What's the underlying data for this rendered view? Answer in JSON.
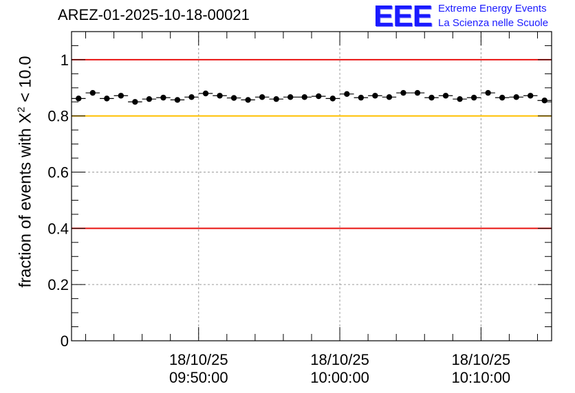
{
  "header": {
    "title": "AREZ-01-2025-10-18-00021"
  },
  "logo": {
    "mark": "EEE",
    "line1": "Extreme Energy Events",
    "line2": "La Scienza nelle Scuole",
    "color": "#1a1aff"
  },
  "chart_data": {
    "type": "scatter",
    "title": "AREZ-01-2025-10-18-00021",
    "xlabel": "",
    "ylabel_prefix": "fraction of events with ",
    "ylabel_symbol": "X",
    "ylabel_exponent": "2",
    "ylabel_suffix": " < 10.0",
    "ylim": [
      0,
      1.1
    ],
    "xlim_minutes": [
      0,
      34
    ],
    "grid": true,
    "x_ticks": [
      {
        "minute": 9,
        "date": "18/10/25",
        "time": "09:50:00"
      },
      {
        "minute": 19,
        "date": "18/10/25",
        "time": "10:00:00"
      },
      {
        "minute": 29,
        "date": "18/10/25",
        "time": "10:10:00"
      }
    ],
    "y_ticks": [
      {
        "value": 0,
        "label": "0"
      },
      {
        "value": 0.2,
        "label": "0.2"
      },
      {
        "value": 0.4,
        "label": "0.4"
      },
      {
        "value": 0.6,
        "label": "0.6"
      },
      {
        "value": 0.8,
        "label": "0.8"
      },
      {
        "value": 1,
        "label": "1"
      }
    ],
    "reference_lines": [
      {
        "value": 1.0,
        "color": "#e8110f"
      },
      {
        "value": 0.8,
        "color": "#ffc000"
      },
      {
        "value": 0.4,
        "color": "#e8110f"
      }
    ],
    "series": [
      {
        "name": "fraction",
        "x": [
          0.5,
          1.5,
          2.5,
          3.5,
          4.5,
          5.5,
          6.5,
          7.5,
          8.5,
          9.5,
          10.5,
          11.5,
          12.5,
          13.5,
          14.5,
          15.5,
          16.5,
          17.5,
          18.5,
          19.5,
          20.5,
          21.5,
          22.5,
          23.5,
          24.5,
          25.5,
          26.5,
          27.5,
          28.5,
          29.5,
          30.5,
          31.5,
          32.5,
          33.5
        ],
        "values": [
          0.862,
          0.882,
          0.862,
          0.872,
          0.85,
          0.86,
          0.865,
          0.857,
          0.867,
          0.88,
          0.872,
          0.864,
          0.857,
          0.867,
          0.86,
          0.867,
          0.867,
          0.87,
          0.862,
          0.878,
          0.865,
          0.872,
          0.867,
          0.882,
          0.882,
          0.865,
          0.872,
          0.86,
          0.865,
          0.882,
          0.865,
          0.867,
          0.872,
          0.855
        ],
        "color": "#000000"
      }
    ]
  }
}
